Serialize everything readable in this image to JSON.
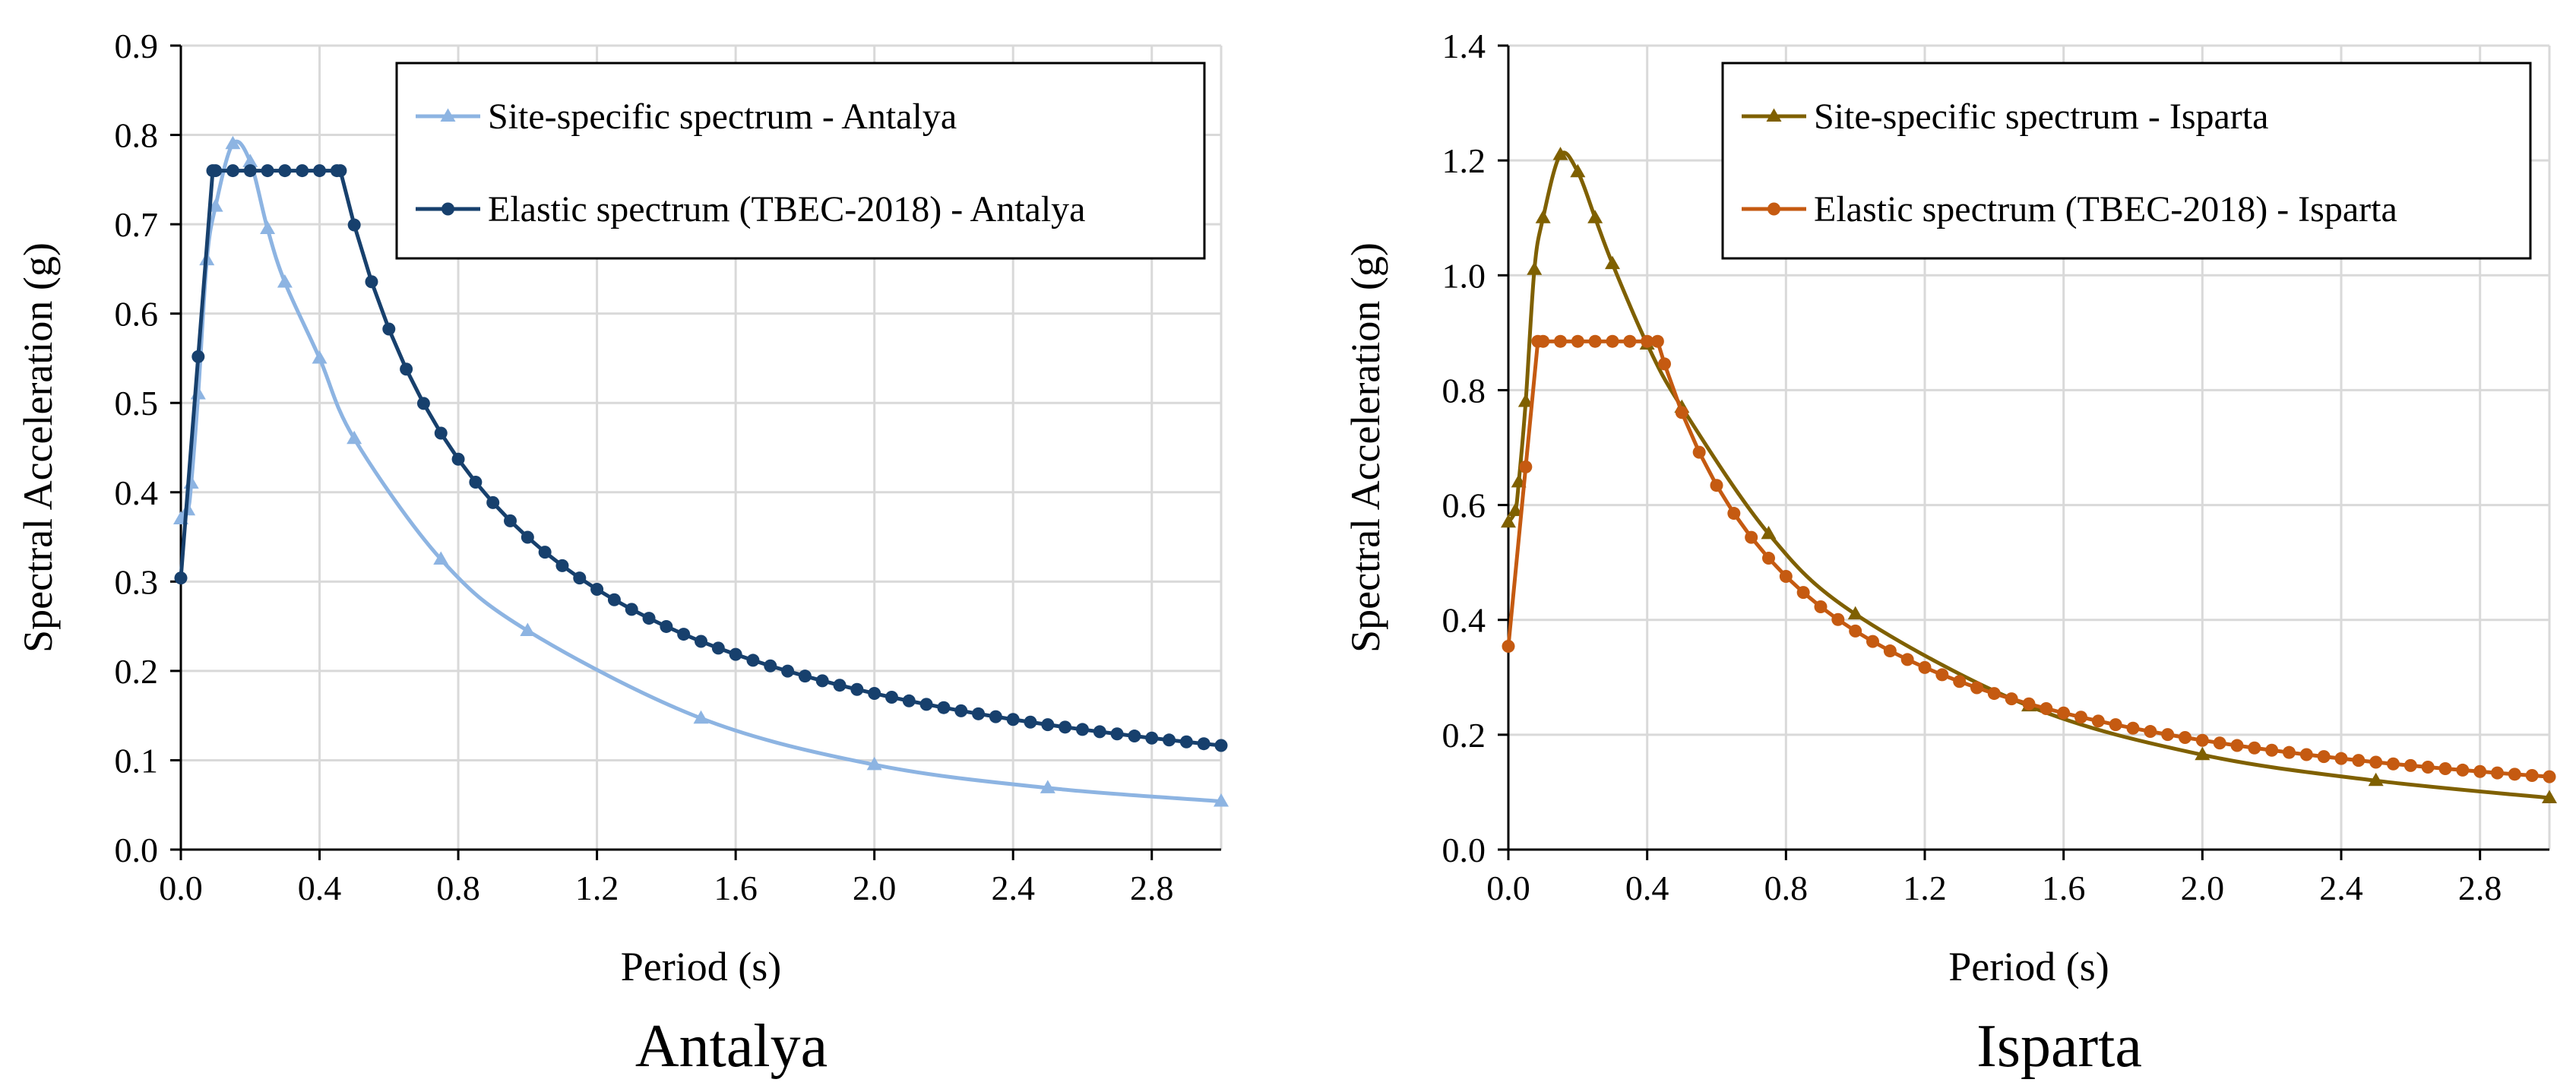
{
  "chart_data": [
    {
      "type": "line",
      "caption": "Antalya",
      "xlabel": "Period (s)",
      "ylabel": "Spectral Acceleration  (g)",
      "xlim": [
        0,
        3.0
      ],
      "ylim": [
        0,
        0.9
      ],
      "xticks": [
        0.0,
        0.4,
        0.8,
        1.2,
        1.6,
        2.0,
        2.4,
        2.8
      ],
      "xtick_labels": [
        "0.0",
        "0.4",
        "0.8",
        "1.2",
        "1.6",
        "2.0",
        "2.4",
        "2.8"
      ],
      "yticks": [
        0,
        0.1,
        0.2,
        0.3,
        0.4,
        0.5,
        0.6,
        0.7,
        0.8,
        0.9
      ],
      "ytick_labels": [
        "0.0",
        "0.1",
        "0.2",
        "0.3",
        "0.4",
        "0.5",
        "0.6",
        "0.7",
        "0.8",
        "0.9"
      ],
      "grid": true,
      "legend_position": "top-right",
      "series": [
        {
          "name": "Site-specific spectrum - Antalya",
          "color": "#8db4e2",
          "marker": "triangle",
          "x": [
            0,
            0.02,
            0.03,
            0.05,
            0.075,
            0.1,
            0.15,
            0.2,
            0.25,
            0.3,
            0.4,
            0.5,
            0.75,
            1.0,
            1.5,
            2.0,
            2.5,
            3.0
          ],
          "y": [
            0.37,
            0.38,
            0.41,
            0.51,
            0.66,
            0.72,
            0.79,
            0.77,
            0.695,
            0.635,
            0.55,
            0.46,
            0.325,
            0.245,
            0.147,
            0.095,
            0.069,
            0.054
          ]
        },
        {
          "name": "Elastic spectrum (TBEC-2018) - Antalya",
          "color": "#17406d",
          "marker": "circle",
          "sds": 0.76,
          "ta": 0.092,
          "tb": 0.46,
          "t_step": 0.05,
          "x_max": 3.0
        }
      ]
    },
    {
      "type": "line",
      "caption": "Isparta",
      "xlabel": "Period (s)",
      "ylabel": "Spectral Acceleration  (g)",
      "xlim": [
        0,
        3.0
      ],
      "ylim": [
        0,
        1.4
      ],
      "xticks": [
        0.0,
        0.4,
        0.8,
        1.2,
        1.6,
        2.0,
        2.4,
        2.8
      ],
      "xtick_labels": [
        "0.0",
        "0.4",
        "0.8",
        "1.2",
        "1.6",
        "2.0",
        "2.4",
        "2.8"
      ],
      "yticks": [
        0,
        0.2,
        0.4,
        0.6,
        0.8,
        1.0,
        1.2,
        1.4
      ],
      "ytick_labels": [
        "0.0",
        "0.2",
        "0.4",
        "0.6",
        "0.8",
        "1.0",
        "1.2",
        "1.4"
      ],
      "grid": true,
      "legend_position": "top-right",
      "series": [
        {
          "name": "Site-specific spectrum - Isparta",
          "color": "#7f6000",
          "marker": "triangle",
          "x": [
            0,
            0.02,
            0.03,
            0.05,
            0.075,
            0.1,
            0.15,
            0.2,
            0.25,
            0.3,
            0.4,
            0.5,
            0.75,
            1.0,
            1.5,
            2.0,
            2.5,
            3.0
          ],
          "y": [
            0.57,
            0.59,
            0.64,
            0.78,
            1.01,
            1.1,
            1.21,
            1.18,
            1.1,
            1.02,
            0.88,
            0.77,
            0.55,
            0.41,
            0.25,
            0.165,
            0.12,
            0.09
          ]
        },
        {
          "name": "Elastic spectrum (TBEC-2018) - Isparta",
          "color": "#c55a11",
          "marker": "circle",
          "sds": 0.885,
          "ta": 0.085,
          "tb": 0.43,
          "t_step": 0.05,
          "x_max": 3.0
        }
      ]
    }
  ]
}
